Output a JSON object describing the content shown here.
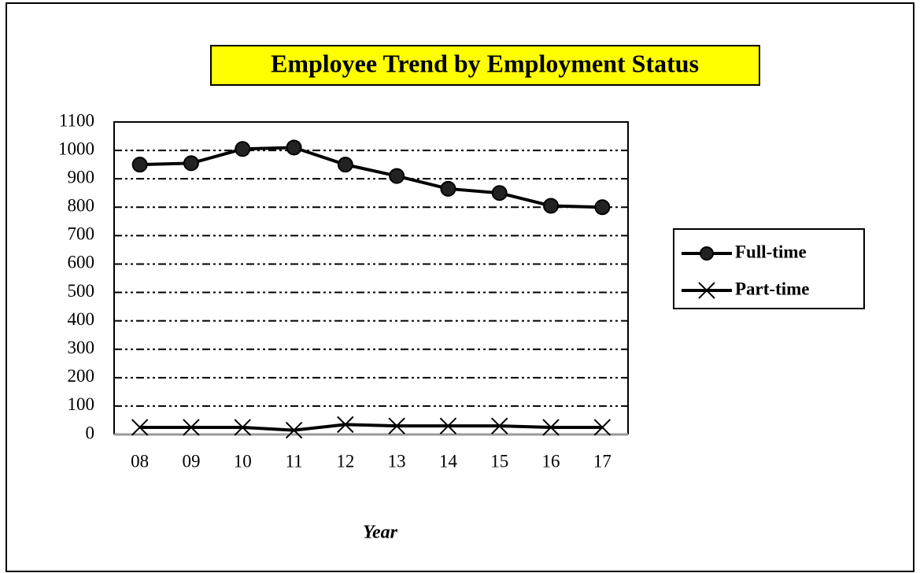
{
  "chart_data": {
    "type": "line",
    "title": "Employee Trend by Employment Status",
    "x_label": "Year",
    "categories": [
      "08",
      "09",
      "10",
      "11",
      "12",
      "13",
      "14",
      "15",
      "16",
      "17"
    ],
    "series": [
      {
        "name": "Full-time",
        "color": "#000000",
        "marker": "circle",
        "values": [
          950,
          955,
          1005,
          1010,
          950,
          910,
          865,
          850,
          805,
          800
        ]
      },
      {
        "name": "Part-time",
        "color": "#000000",
        "marker": "x",
        "values": [
          25,
          25,
          25,
          15,
          35,
          30,
          30,
          30,
          25,
          25
        ]
      }
    ],
    "ylim": [
      0,
      1100
    ],
    "yticks": [
      0,
      100,
      200,
      300,
      400,
      500,
      600,
      700,
      800,
      900,
      1000,
      1100
    ],
    "grid": true,
    "legend": "right"
  }
}
